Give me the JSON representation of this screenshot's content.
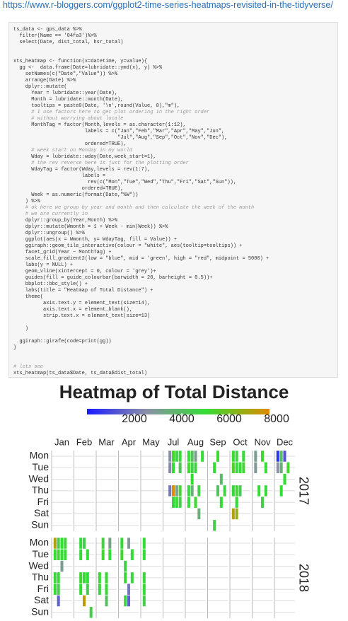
{
  "url": "https://www.r-bloggers.com/ggplot2-time-series-heatmaps-revisited-in-the-tidyverse/",
  "code_blocks": [
    [
      "ts_data <- gps_data %>%",
      "  filter(Name == '04fa3')%>%",
      "  select(Date, dist_total, hsr_total)"
    ],
    [
      "xts_heatmap <- function(x=datetime, y=value){",
      "  gg <-  data.frame(Date=lubridate::ymd(x), y) %>%",
      "    setNames(c(\"Date\",\"Value\")) %>%",
      "    arrange(Date) %>%",
      "    dplyr::mutate(",
      "      Year = lubridate::year(Date),",
      "      Month = lubridate::month(Date),",
      "      tooltips = paste0(Date, '\\n',round(Value, 0),\"m\"),",
      "      # I use factors here to get plot ordering in the right order",
      "      # without worrying about locale",
      "      MonthTag = factor(Month,levels = as.character(1:12),",
      "                        labels = c(\"Jan\",\"Feb\",\"Mar\",\"Apr\",\"May\",\"Jun\",",
      "                                   \"Jul\",\"Aug\",\"Sep\",\"Oct\",\"Nov\",\"Dec\"),",
      "                        ordered=TRUE),",
      "      # week start on Monday in my world",
      "      Wday = lubridate::wday(Date,week_start=1),",
      "      # the rev reverse here is just for the plotting order",
      "      WdayTag = factor(Wday,levels = rev(1:7),",
      "                       labels =",
      "                         rev(c(\"Mon\",\"Tue\",\"Wed\",\"Thu\",\"Fri\",\"Sat\",\"Sun\")),",
      "                       ordered=TRUE),",
      "      Week = as.numeric(format(Date,\"%W\"))",
      "    ) %>%",
      "    # ok here we group by year and month and then calculate the week of the month",
      "    # we are currently in",
      "    dplyr::group_by(Year,Month) %>%",
      "    dplyr::mutate(Wmonth = 1 + Week - min(Week)) %>%",
      "    dplyr::ungroup() %>%",
      "    ggplot(aes(x = Wmonth, y= WdayTag, fill = Value)) +",
      "    ggiraph::geom_tile_interactive(colour = \"white\", aes(tooltip=tooltips)) +",
      "    facet_grid(Year ~ MonthTag) +",
      "    scale_fill_gradient2(low = \"blue\", mid = 'green', high = \"red\", midpoint = 5000) +",
      "    labs(y = NULL) +",
      "    geom_vline(xintercept = 0, colour = 'grey')+",
      "    guides(fill = guide_colourbar(barwidth = 20, barheight = 0.5))+",
      "    bbplot::bbc_style() +",
      "    labs(title = \"Heatmap of Total Distance\") +",
      "    theme(",
      "          axis.text.y = element_text(size=14),",
      "          axis.text.x = element_blank(),",
      "          strip.text.x = element_text(size=13)"
    ],
    [
      "    )"
    ],
    [
      "  ggiraph::girafe(code=print(gg))",
      "}"
    ],
    [
      "# lets see",
      "xts_heatmap(ts_data$Date, ts_data$dist_total)"
    ]
  ],
  "chart_data": {
    "type": "heatmap",
    "title": "Heatmap of Total Distance",
    "categories": [
      "Jan",
      "Feb",
      "Mar",
      "Apr",
      "May",
      "Jul",
      "Aug",
      "Sep",
      "Oct",
      "Nov",
      "Dec"
    ],
    "rows": [
      "Mon",
      "Tue",
      "Wed",
      "Thu",
      "Fri",
      "Sat",
      "Sun"
    ],
    "facets": [
      "2017",
      "2018"
    ],
    "xlim": [
      0,
      6
    ],
    "vline": 0,
    "legend": {
      "lim": [
        0,
        7700
      ],
      "ticks": [
        2000,
        4000,
        6000,
        8000
      ]
    },
    "color_stops": [
      [
        0,
        "#1a1aff"
      ],
      [
        2500,
        "#8c90a8"
      ],
      [
        5000,
        "#33dd33"
      ],
      [
        7700,
        "#e08a00"
      ]
    ],
    "cells": [
      [
        "2017",
        "Jul",
        2,
        "Mon",
        2600
      ],
      [
        "2017",
        "Jul",
        2,
        "Tue",
        2400
      ],
      [
        "2017",
        "Jul",
        2,
        "Thu",
        2000
      ],
      [
        "2017",
        "Jul",
        3,
        "Mon",
        5200
      ],
      [
        "2017",
        "Jul",
        3,
        "Tue",
        5000
      ],
      [
        "2017",
        "Jul",
        3,
        "Thu",
        7600
      ],
      [
        "2017",
        "Jul",
        3,
        "Fri",
        4800
      ],
      [
        "2017",
        "Jul",
        4,
        "Mon",
        4500
      ],
      [
        "2017",
        "Jul",
        4,
        "Thu",
        3000
      ],
      [
        "2017",
        "Jul",
        4,
        "Fri",
        5000
      ],
      [
        "2017",
        "Jul",
        5,
        "Mon",
        5000
      ],
      [
        "2017",
        "Jul",
        5,
        "Tue",
        4200
      ],
      [
        "2017",
        "Jul",
        5,
        "Thu",
        5200
      ],
      [
        "2017",
        "Jul",
        5,
        "Fri",
        4600
      ],
      [
        "2017",
        "Aug",
        1,
        "Mon",
        5000
      ],
      [
        "2017",
        "Aug",
        1,
        "Tue",
        5200
      ],
      [
        "2017",
        "Aug",
        1,
        "Thu",
        4800
      ],
      [
        "2017",
        "Aug",
        1,
        "Fri",
        5000
      ],
      [
        "2017",
        "Aug",
        2,
        "Mon",
        4000
      ],
      [
        "2017",
        "Aug",
        2,
        "Tue",
        4500
      ],
      [
        "2017",
        "Aug",
        2,
        "Wed",
        5000
      ],
      [
        "2017",
        "Aug",
        2,
        "Thu",
        3500
      ],
      [
        "2017",
        "Aug",
        3,
        "Mon",
        3000
      ],
      [
        "2017",
        "Aug",
        3,
        "Tue",
        4800
      ],
      [
        "2017",
        "Aug",
        3,
        "Fri",
        5200
      ],
      [
        "2017",
        "Aug",
        4,
        "Thu",
        4500
      ],
      [
        "2017",
        "Aug",
        4,
        "Sat",
        3500
      ],
      [
        "2017",
        "Aug",
        5,
        "Mon",
        5000
      ],
      [
        "2017",
        "Sep",
        2,
        "Tue",
        5000
      ],
      [
        "2017",
        "Sep",
        2,
        "Sun",
        4500
      ],
      [
        "2017",
        "Sep",
        3,
        "Mon",
        5200
      ],
      [
        "2017",
        "Sep",
        3,
        "Thu",
        4000
      ],
      [
        "2017",
        "Sep",
        4,
        "Wed",
        3800
      ],
      [
        "2017",
        "Sep",
        4,
        "Fri",
        5000
      ],
      [
        "2017",
        "Sep",
        5,
        "Thu",
        4500
      ],
      [
        "2017",
        "Oct",
        1,
        "Mon",
        5000
      ],
      [
        "2017",
        "Oct",
        1,
        "Tue",
        5500
      ],
      [
        "2017",
        "Oct",
        1,
        "Thu",
        4800
      ],
      [
        "2017",
        "Oct",
        1,
        "Sat",
        7000
      ],
      [
        "2017",
        "Oct",
        2,
        "Mon",
        4800
      ],
      [
        "2017",
        "Oct",
        2,
        "Tue",
        5000
      ],
      [
        "2017",
        "Oct",
        2,
        "Thu",
        5200
      ],
      [
        "2017",
        "Oct",
        2,
        "Fri",
        5000
      ],
      [
        "2017",
        "Oct",
        2,
        "Sat",
        6500
      ],
      [
        "2017",
        "Oct",
        3,
        "Tue",
        4800
      ],
      [
        "2017",
        "Oct",
        3,
        "Thu",
        4200
      ],
      [
        "2017",
        "Oct",
        4,
        "Mon",
        5000
      ],
      [
        "2017",
        "Oct",
        4,
        "Tue",
        5200
      ],
      [
        "2017",
        "Nov",
        1,
        "Mon",
        3000
      ],
      [
        "2017",
        "Nov",
        1,
        "Tue",
        2800
      ],
      [
        "2017",
        "Nov",
        2,
        "Thu",
        5000
      ],
      [
        "2017",
        "Nov",
        3,
        "Mon",
        5200
      ],
      [
        "2017",
        "Nov",
        3,
        "Fri",
        4500
      ],
      [
        "2017",
        "Nov",
        4,
        "Tue",
        5000
      ],
      [
        "2017",
        "Nov",
        4,
        "Thu",
        4800
      ],
      [
        "2017",
        "Dec",
        1,
        "Mon",
        500
      ],
      [
        "2017",
        "Dec",
        1,
        "Tue",
        2500
      ],
      [
        "2017",
        "Dec",
        2,
        "Mon",
        4000
      ],
      [
        "2017",
        "Dec",
        2,
        "Tue",
        3500
      ],
      [
        "2017",
        "Dec",
        2,
        "Thu",
        5000
      ],
      [
        "2017",
        "Dec",
        3,
        "Mon",
        1200
      ],
      [
        "2017",
        "Dec",
        3,
        "Wed",
        5000
      ],
      [
        "2017",
        "Dec",
        4,
        "Tue",
        5200
      ],
      [
        "2018",
        "Jan",
        1,
        "Mon",
        7000
      ],
      [
        "2018",
        "Jan",
        1,
        "Tue",
        5000
      ],
      [
        "2018",
        "Jan",
        1,
        "Thu",
        4800
      ],
      [
        "2018",
        "Jan",
        1,
        "Fri",
        5000
      ],
      [
        "2018",
        "Jan",
        2,
        "Mon",
        4500
      ],
      [
        "2018",
        "Jan",
        2,
        "Tue",
        5200
      ],
      [
        "2018",
        "Jan",
        2,
        "Thu",
        5000
      ],
      [
        "2018",
        "Jan",
        2,
        "Fri",
        4500
      ],
      [
        "2018",
        "Jan",
        2,
        "Sat",
        1500
      ],
      [
        "2018",
        "Jan",
        3,
        "Mon",
        5000
      ],
      [
        "2018",
        "Jan",
        3,
        "Tue",
        4800
      ],
      [
        "2018",
        "Jan",
        3,
        "Wed",
        3000
      ],
      [
        "2018",
        "Jan",
        4,
        "Mon",
        4800
      ],
      [
        "2018",
        "Jan",
        4,
        "Tue",
        5000
      ],
      [
        "2018",
        "Feb",
        2,
        "Mon",
        5000
      ],
      [
        "2018",
        "Feb",
        2,
        "Tue",
        4800
      ],
      [
        "2018",
        "Feb",
        2,
        "Thu",
        5200
      ],
      [
        "2018",
        "Feb",
        2,
        "Fri",
        5000
      ],
      [
        "2018",
        "Feb",
        3,
        "Mon",
        4500
      ],
      [
        "2018",
        "Feb",
        3,
        "Thu",
        4800
      ],
      [
        "2018",
        "Feb",
        3,
        "Sat",
        7200
      ],
      [
        "2018",
        "Feb",
        4,
        "Tue",
        5000
      ],
      [
        "2018",
        "Feb",
        4,
        "Thu",
        5000
      ],
      [
        "2018",
        "Feb",
        4,
        "Fri",
        4200
      ],
      [
        "2018",
        "Feb",
        5,
        "Sun",
        4500
      ],
      [
        "2018",
        "Mar",
        1,
        "Thu",
        5000
      ],
      [
        "2018",
        "Mar",
        1,
        "Fri",
        4800
      ],
      [
        "2018",
        "Mar",
        2,
        "Mon",
        4500
      ],
      [
        "2018",
        "Mar",
        2,
        "Tue",
        5200
      ],
      [
        "2018",
        "Mar",
        3,
        "Thu",
        5000
      ],
      [
        "2018",
        "Mar",
        3,
        "Fri",
        5000
      ],
      [
        "2018",
        "Mar",
        3,
        "Sat",
        4000
      ],
      [
        "2018",
        "Mar",
        4,
        "Mon",
        3000
      ],
      [
        "2018",
        "Mar",
        4,
        "Tue",
        5000
      ],
      [
        "2018",
        "Apr",
        1,
        "Mon",
        5000
      ],
      [
        "2018",
        "Apr",
        1,
        "Tue",
        5200
      ],
      [
        "2018",
        "Apr",
        2,
        "Wed",
        4500
      ],
      [
        "2018",
        "Apr",
        2,
        "Thu",
        4800
      ],
      [
        "2018",
        "Apr",
        2,
        "Sat",
        4700
      ],
      [
        "2018",
        "Apr",
        3,
        "Mon",
        2800
      ],
      [
        "2018",
        "Apr",
        3,
        "Fri",
        2000
      ],
      [
        "2018",
        "Apr",
        3,
        "Sat",
        1500
      ],
      [
        "2018",
        "Apr",
        4,
        "Tue",
        5000
      ],
      [
        "2018",
        "Apr",
        4,
        "Thu",
        4800
      ],
      [
        "2018",
        "May",
        1,
        "Mon",
        5000
      ],
      [
        "2018",
        "May",
        1,
        "Tue",
        5000
      ],
      [
        "2018",
        "May",
        1,
        "Thu",
        4800
      ],
      [
        "2018",
        "May",
        1,
        "Fri",
        5000
      ],
      [
        "2018",
        "May",
        1,
        "Sat",
        4500
      ]
    ]
  }
}
